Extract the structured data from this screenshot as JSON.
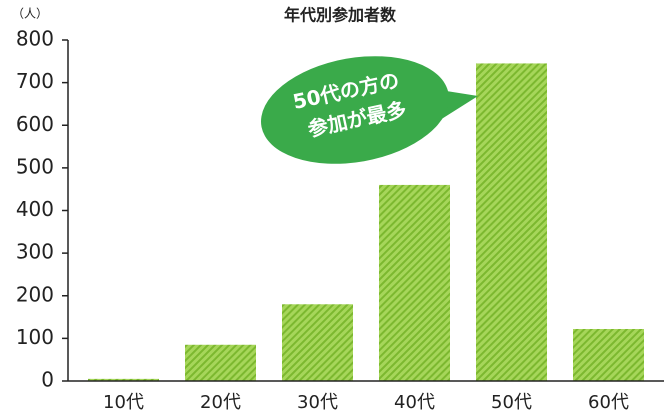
{
  "chart_data": {
    "type": "bar",
    "title": "年代別参加者数",
    "y_unit": "（人）",
    "categories": [
      "10代",
      "20代",
      "30代",
      "40代",
      "50代",
      "60代"
    ],
    "values": [
      5,
      85,
      180,
      460,
      745,
      122
    ],
    "color": "#8cc63f",
    "ylim": [
      0,
      800
    ],
    "yticks": [
      0,
      100,
      200,
      300,
      400,
      500,
      600,
      700,
      800
    ],
    "annotation": {
      "lines": [
        "50代の方の",
        "参加が最多"
      ],
      "color": "#3aaa4a"
    }
  }
}
